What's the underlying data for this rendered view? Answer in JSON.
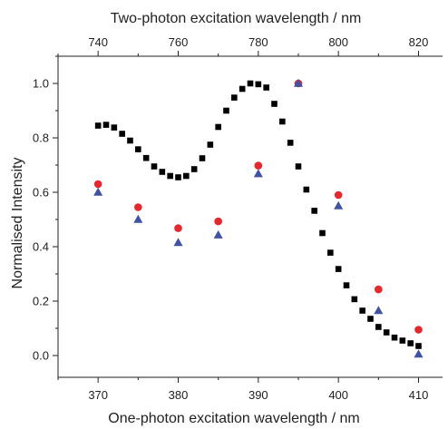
{
  "chart_data": {
    "type": "scatter",
    "xlabel": "One-photon excitation wavelength / nm",
    "x2label": "Two-photon excitation wavelength / nm",
    "ylabel": "Normalised Intensity",
    "xlim": [
      365,
      413
    ],
    "x2lim": [
      730,
      826
    ],
    "ylim": [
      -0.08,
      1.1
    ],
    "xticks": [
      370,
      380,
      390,
      400,
      410
    ],
    "x2ticks": [
      740,
      760,
      780,
      800,
      820
    ],
    "yticks": [
      0.0,
      0.2,
      0.4,
      0.6,
      0.8,
      1.0
    ],
    "xtick_labels": [
      "370",
      "380",
      "390",
      "400",
      "410"
    ],
    "x2tick_labels": [
      "740",
      "760",
      "780",
      "800",
      "820"
    ],
    "ytick_labels": [
      "0.0",
      "0.2",
      "0.4",
      "0.6",
      "0.8",
      "1.0"
    ],
    "grid": false,
    "series": [
      {
        "marker": "square",
        "color": "#000000",
        "x": [
          370,
          371,
          372,
          373,
          374,
          375,
          376,
          377,
          378,
          379,
          380,
          381,
          382,
          383,
          384,
          385,
          386,
          387,
          388,
          389,
          390,
          391,
          392,
          393,
          394,
          395,
          396,
          397,
          398,
          399,
          400,
          401,
          402,
          403,
          404,
          405,
          406,
          407,
          408,
          409,
          410
        ],
        "y": [
          0.845,
          0.848,
          0.838,
          0.815,
          0.79,
          0.758,
          0.726,
          0.695,
          0.675,
          0.66,
          0.655,
          0.66,
          0.685,
          0.725,
          0.775,
          0.84,
          0.9,
          0.948,
          0.98,
          1.0,
          0.997,
          0.985,
          0.925,
          0.86,
          0.782,
          0.695,
          0.61,
          0.532,
          0.45,
          0.378,
          0.318,
          0.258,
          0.207,
          0.165,
          0.135,
          0.105,
          0.085,
          0.066,
          0.055,
          0.045,
          0.035
        ]
      },
      {
        "marker": "circle",
        "color": "#e8262b",
        "x": [
          370,
          375,
          380,
          385,
          390,
          395,
          400,
          405,
          410
        ],
        "y": [
          0.63,
          0.545,
          0.468,
          0.493,
          0.698,
          1.0,
          0.59,
          0.243,
          0.095
        ]
      },
      {
        "marker": "triangle",
        "color": "#3f52a5",
        "x": [
          370,
          375,
          380,
          385,
          390,
          395,
          400,
          405,
          410
        ],
        "y": [
          0.6,
          0.5,
          0.415,
          0.443,
          0.668,
          1.0,
          0.55,
          0.165,
          0.005
        ]
      }
    ]
  }
}
